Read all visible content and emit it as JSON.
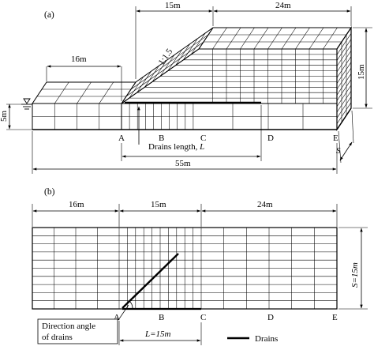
{
  "panel_a": {
    "label": "(a)",
    "dims": {
      "top_slope": "15m",
      "top_crest": "24m",
      "toe": "16m",
      "height": "15m",
      "water": "5m",
      "total": "55m"
    },
    "slope_ratio": "1:1.5",
    "points": [
      "A",
      "B",
      "C",
      "D",
      "E"
    ],
    "drains_length_label": "Drains  length, ",
    "drains_length_symbol": "L",
    "spacing_symbol": "S"
  },
  "panel_b": {
    "label": "(b)",
    "dims": {
      "left": "16m",
      "middle": "15m",
      "right": "24m",
      "width": "S=15m",
      "drain_length": "L=15m"
    },
    "points": [
      "A",
      "B",
      "C",
      "D",
      "E"
    ],
    "callout_line1": "Direction angle",
    "callout_line2": "of drains",
    "legend_label": "Drains"
  }
}
